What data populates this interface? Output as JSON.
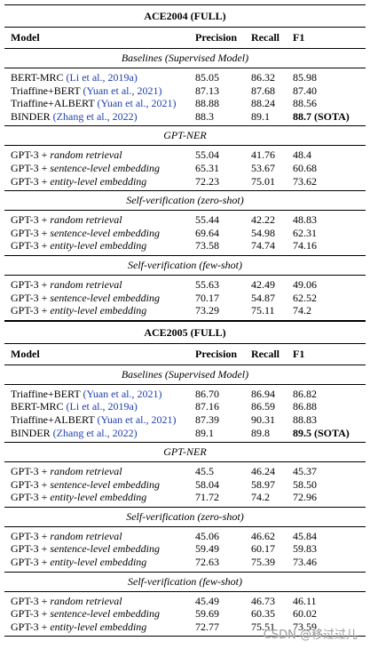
{
  "tables": [
    {
      "title": "ACE2004 (FULL)",
      "header": [
        "Model",
        "Precision",
        "Recall",
        "F1"
      ],
      "sections": [
        {
          "title": "Baselines (Supervised Model)",
          "rows": [
            {
              "model": "BERT-MRC",
              "cite": "(Li et al., 2019a)",
              "precision": "85.05",
              "recall": "86.32",
              "f1": "85.98"
            },
            {
              "model": "Triaffine+BERT",
              "cite": "(Yuan et al., 2021)",
              "precision": "87.13",
              "recall": "87.68",
              "f1": "87.40"
            },
            {
              "model": "Triaffine+ALBERT",
              "cite": "(Yuan et al., 2021)",
              "precision": "88.88",
              "recall": "88.24",
              "f1": "88.56"
            },
            {
              "model": "BINDER",
              "cite": "(Zhang et al., 2022)",
              "precision": "88.3",
              "recall": "89.1",
              "f1": "88.7 (SOTA)",
              "best": true
            }
          ]
        },
        {
          "title": "GPT-NER",
          "rows": [
            {
              "model": "GPT-3 +",
              "method": "random retrieval",
              "precision": "55.04",
              "recall": "41.76",
              "f1": "48.4"
            },
            {
              "model": "GPT-3 +",
              "method": "sentence-level embedding",
              "precision": "65.31",
              "recall": "53.67",
              "f1": "60.68"
            },
            {
              "model": "GPT-3 +",
              "method": "entity-level embedding",
              "precision": "72.23",
              "recall": "75.01",
              "f1": "73.62"
            }
          ]
        },
        {
          "title": "Self-verification (zero-shot)",
          "rows": [
            {
              "model": "GPT-3 +",
              "method": "random retrieval",
              "precision": "55.44",
              "recall": "42.22",
              "f1": "48.83"
            },
            {
              "model": "GPT-3 +",
              "method": "sentence-level embedding",
              "precision": "69.64",
              "recall": "54.98",
              "f1": "62.31"
            },
            {
              "model": "GPT-3 +",
              "method": "entity-level embedding",
              "precision": "73.58",
              "recall": "74.74",
              "f1": "74.16"
            }
          ]
        },
        {
          "title": "Self-verification (few-shot)",
          "rows": [
            {
              "model": "GPT-3 +",
              "method": "random retrieval",
              "precision": "55.63",
              "recall": "42.49",
              "f1": "49.06"
            },
            {
              "model": "GPT-3 +",
              "method": "sentence-level embedding",
              "precision": "70.17",
              "recall": "54.87",
              "f1": "62.52"
            },
            {
              "model": "GPT-3 +",
              "method": "entity-level embedding",
              "precision": "73.29",
              "recall": "75.11",
              "f1": "74.2"
            }
          ]
        }
      ]
    },
    {
      "title": "ACE2005 (FULL)",
      "header": [
        "Model",
        "Precision",
        "Recall",
        "F1"
      ],
      "sections": [
        {
          "title": "Baselines (Supervised Model)",
          "rows": [
            {
              "model": "Triaffine+BERT",
              "cite": "(Yuan et al., 2021)",
              "precision": "86.70",
              "recall": "86.94",
              "f1": "86.82"
            },
            {
              "model": "BERT-MRC",
              "cite": "(Li et al., 2019a)",
              "precision": "87.16",
              "recall": "86.59",
              "f1": "86.88"
            },
            {
              "model": "Triaffine+ALBERT",
              "cite": "(Yuan et al., 2021)",
              "precision": "87.39",
              "recall": "90.31",
              "f1": "88.83"
            },
            {
              "model": "BINDER",
              "cite": "(Zhang et al., 2022)",
              "precision": "89.1",
              "recall": "89.8",
              "f1": "89.5 (SOTA)",
              "best": true
            }
          ]
        },
        {
          "title": "GPT-NER",
          "rows": [
            {
              "model": "GPT-3 +",
              "method": "random retrieval",
              "precision": "45.5",
              "recall": "46.24",
              "f1": "45.37"
            },
            {
              "model": "GPT-3 +",
              "method": "sentence-level embedding",
              "precision": "58.04",
              "recall": "58.97",
              "f1": "58.50"
            },
            {
              "model": "GPT-3 +",
              "method": "entity-level embedding",
              "precision": "71.72",
              "recall": "74.2",
              "f1": "72.96"
            }
          ]
        },
        {
          "title": "Self-verification (zero-shot)",
          "rows": [
            {
              "model": "GPT-3 +",
              "method": "random retrieval",
              "precision": "45.06",
              "recall": "46.62",
              "f1": "45.84"
            },
            {
              "model": "GPT-3 +",
              "method": "sentence-level embedding",
              "precision": "59.49",
              "recall": "60.17",
              "f1": "59.83"
            },
            {
              "model": "GPT-3 +",
              "method": "entity-level embedding",
              "precision": "72.63",
              "recall": "75.39",
              "f1": "73.46"
            }
          ]
        },
        {
          "title": "Self-verification (few-shot)",
          "rows": [
            {
              "model": "GPT-3 +",
              "method": "random retrieval",
              "precision": "45.49",
              "recall": "46.73",
              "f1": "46.11"
            },
            {
              "model": "GPT-3 +",
              "method": "sentence-level embedding",
              "precision": "59.69",
              "recall": "60.35",
              "f1": "60.02"
            },
            {
              "model": "GPT-3 +",
              "method": "entity-level embedding",
              "precision": "72.77",
              "recall": "75.51",
              "f1": "73.59"
            }
          ]
        }
      ]
    }
  ],
  "watermark": "CSDN @移过过儿"
}
